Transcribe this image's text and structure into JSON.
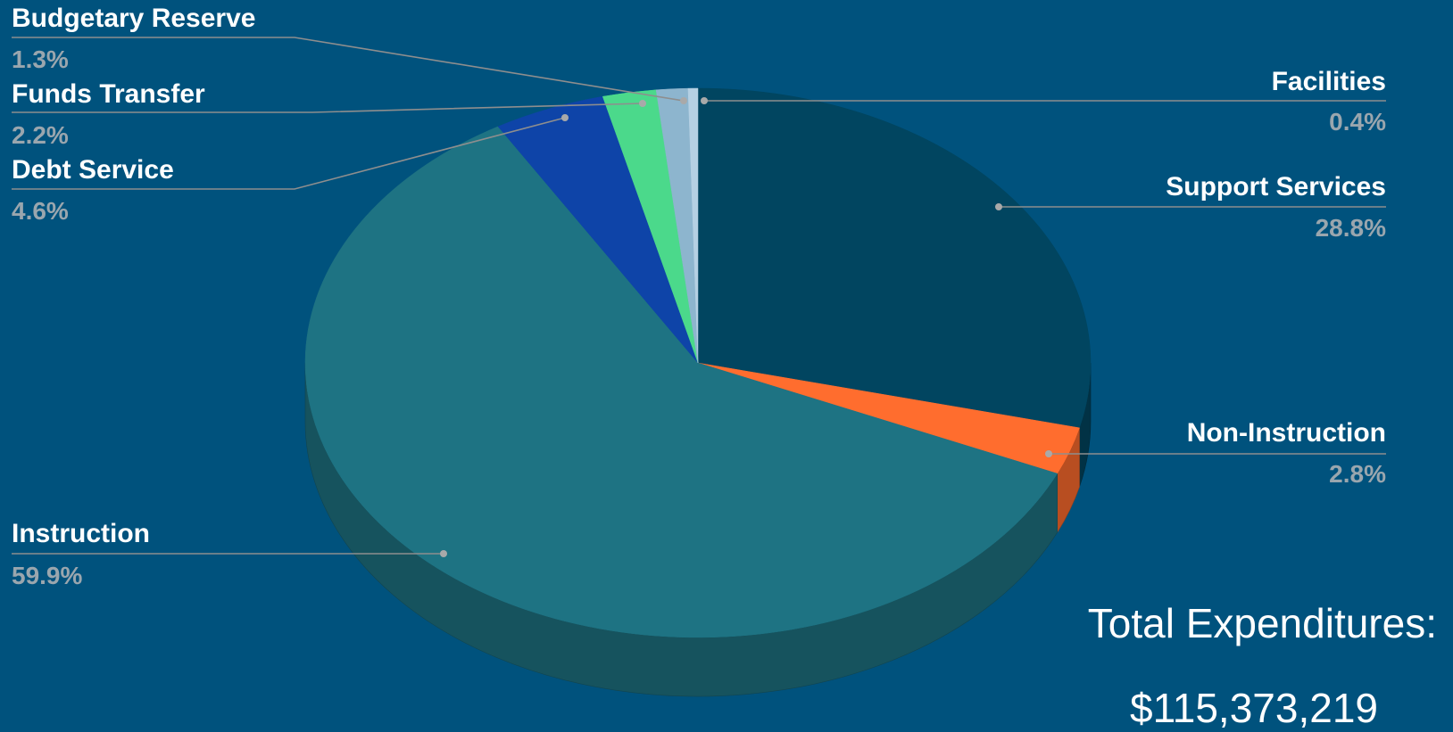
{
  "chart_data": {
    "type": "pie",
    "style": "3d",
    "series": [
      {
        "label": "Support Services",
        "percent_label": "28.8%",
        "value": 28.8,
        "color": "#014560"
      },
      {
        "label": "Non-Instruction",
        "percent_label": "2.8%",
        "value": 2.8,
        "color": "#FF6D2E"
      },
      {
        "label": "Instruction",
        "percent_label": "59.9%",
        "value": 59.9,
        "color": "#1E7383"
      },
      {
        "label": "Debt Service",
        "percent_label": "4.6%",
        "value": 4.6,
        "color": "#0E44A8"
      },
      {
        "label": "Funds Transfer",
        "percent_label": "2.2%",
        "value": 2.2,
        "color": "#4BD98B"
      },
      {
        "label": "Budgetary Reserve",
        "percent_label": "1.3%",
        "value": 1.3,
        "color": "#8DB5CE"
      },
      {
        "label": "Facilities",
        "percent_label": "0.4%",
        "value": 0.4,
        "color": "#B5D0E3"
      }
    ],
    "leader_line_color": "#8E8E8E"
  },
  "total": {
    "title": "Total Expenditures:",
    "value": "$115,373,219"
  }
}
